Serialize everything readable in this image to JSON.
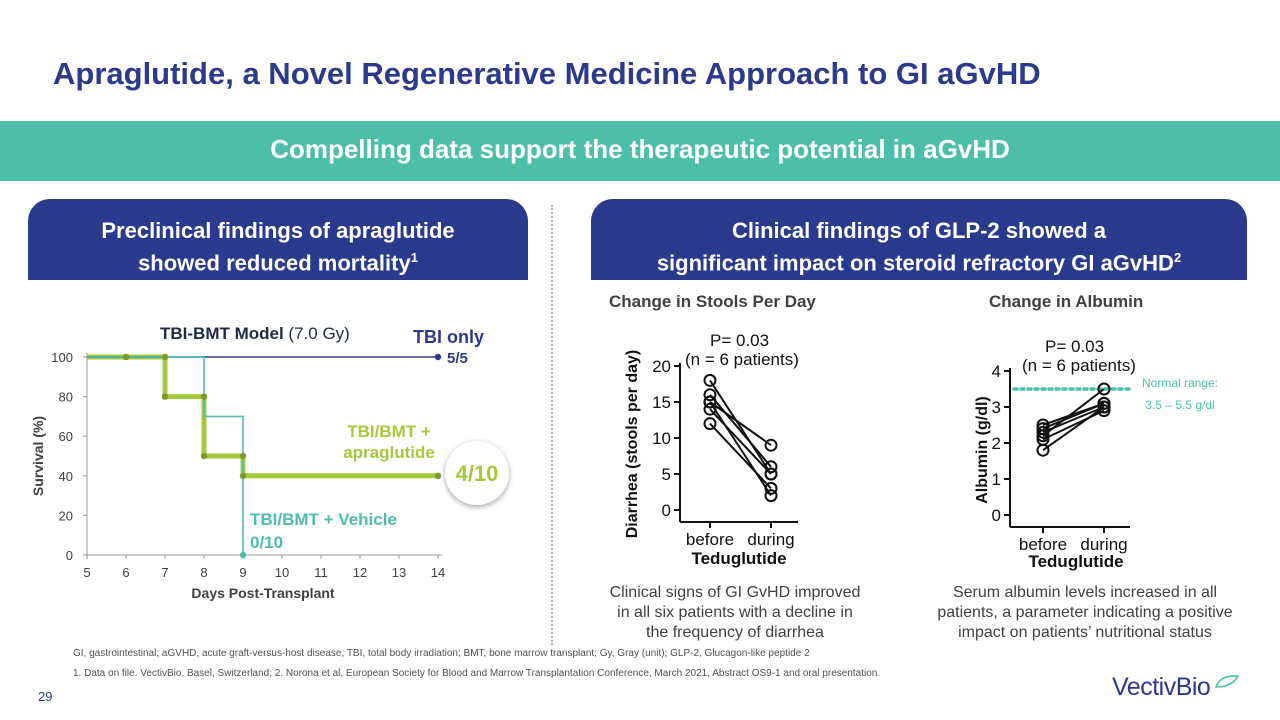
{
  "title": "Apraglutide, a Novel Regenerative Medicine Approach to GI aGvHD",
  "banner": "Compelling data support the therapeutic potential in aGvHD",
  "left_panel": {
    "head_line1": "Preclinical findings of apraglutide",
    "head_line2": "showed reduced mortality",
    "head_sup": "1"
  },
  "right_panel": {
    "head_line1": "Clinical findings of GLP-2 showed a",
    "head_line2": "significant impact on steroid refractory GI aGvHD",
    "head_sup": "2",
    "stools_title": "Change in Stools Per Day",
    "albumin_title": "Change in Albumin",
    "stools_caption_1": "Clinical signs of GI GvHD improved",
    "stools_caption_2": "in all six patients with a decline in",
    "stools_caption_3": "the frequency of diarrhea",
    "albumin_caption_1": "Serum albumin levels increased in all",
    "albumin_caption_2": "patients, a parameter indicating a positive",
    "albumin_caption_3": "impact on patients’ nutritional status"
  },
  "chart_data": [
    {
      "type": "line",
      "title_bold": "TBI-BMT Model",
      "title_rest": " (7.0 Gy)",
      "xlabel": "Days Post-Transplant",
      "ylabel": "Survival (%)",
      "xlim": [
        5,
        14
      ],
      "ylim": [
        0,
        100
      ],
      "xticks": [
        "5",
        "6",
        "7",
        "8",
        "9",
        "10",
        "11",
        "12",
        "13",
        "14"
      ],
      "yticks": [
        "0",
        "20",
        "40",
        "60",
        "80",
        "100"
      ],
      "series": [
        {
          "name": "TBI only",
          "end_label": "5/5",
          "color": "#2b3a8c",
          "x": [
            5,
            14
          ],
          "y": [
            100,
            100
          ],
          "markers_x": [
            14
          ],
          "markers_y": [
            100
          ]
        },
        {
          "name_line1": "TBI/BMT +",
          "name_line2": "apraglutide",
          "end_label": "4/10",
          "color": "#a6c83c",
          "x": [
            5,
            7,
            7,
            8,
            8,
            9,
            9,
            14
          ],
          "y": [
            100,
            100,
            80,
            80,
            50,
            50,
            40,
            40
          ],
          "markers_x": [
            6,
            7,
            7,
            8,
            8,
            9,
            9,
            14
          ],
          "markers_y": [
            100,
            100,
            80,
            80,
            50,
            50,
            40,
            40
          ]
        },
        {
          "name": "TBI/BMT + Vehicle",
          "end_label": "0/10",
          "color": "#4dbfa8",
          "x": [
            5,
            8,
            8,
            9,
            9,
            9
          ],
          "y": [
            100,
            100,
            70,
            70,
            50,
            0
          ],
          "markers_x": [
            9
          ],
          "markers_y": [
            0
          ]
        }
      ]
    },
    {
      "type": "scatter",
      "title": "Change in Stools Per Day",
      "annotation_p": "P= 0.03",
      "annotation_n": "(n = 6 patients)",
      "ylabel": "Diarrhea (stools per day)",
      "xlabel": "Teduglutide",
      "categories": [
        "before",
        "during"
      ],
      "ylim": [
        0,
        20
      ],
      "yticks": [
        "0",
        "5",
        "10",
        "15",
        "20"
      ],
      "pairs": [
        [
          18,
          5
        ],
        [
          16,
          6
        ],
        [
          15,
          9
        ],
        [
          14,
          5
        ],
        [
          12,
          3
        ],
        [
          15,
          2
        ]
      ]
    },
    {
      "type": "scatter",
      "title": "Change in Albumin",
      "annotation_p": "P= 0.03",
      "annotation_n": "(n = 6 patients)",
      "ylabel": "Albumin (g/dl)",
      "xlabel": "Teduglutide",
      "categories": [
        "before",
        "during"
      ],
      "ylim": [
        0,
        4
      ],
      "yticks": [
        "0",
        "1",
        "2",
        "3",
        "4"
      ],
      "normal_range_value": 3.5,
      "normal_range_label_1": "Normal range:",
      "normal_range_label_2": "3.5 – 5.5 g/dl",
      "pairs": [
        [
          2.5,
          3.1
        ],
        [
          2.3,
          3.0
        ],
        [
          2.2,
          3.5
        ],
        [
          2.1,
          2.9
        ],
        [
          1.8,
          3.0
        ],
        [
          2.4,
          3.1
        ]
      ]
    }
  ],
  "footnotes": {
    "abbrev": "GI, gastrointestinal; aGVHD, acute graft-versus-host disease; TBI, total body irradiation; BMT, bone marrow transplant; Gy, Gray (unit); GLP-2, Glucagon-like peptide 2",
    "refs": "1. Data on file. VectivBio. Basel, Switzerland; 2. Norona et al. European Society for Blood and Marrow Transplantation Conference, March 2021, Abstract OS9-1 and oral presentation."
  },
  "page_number": "29",
  "logo": "VectivBio",
  "colors": {
    "navy": "#2b3a8c",
    "teal": "#4dbfa8",
    "green": "#a6c83c"
  }
}
